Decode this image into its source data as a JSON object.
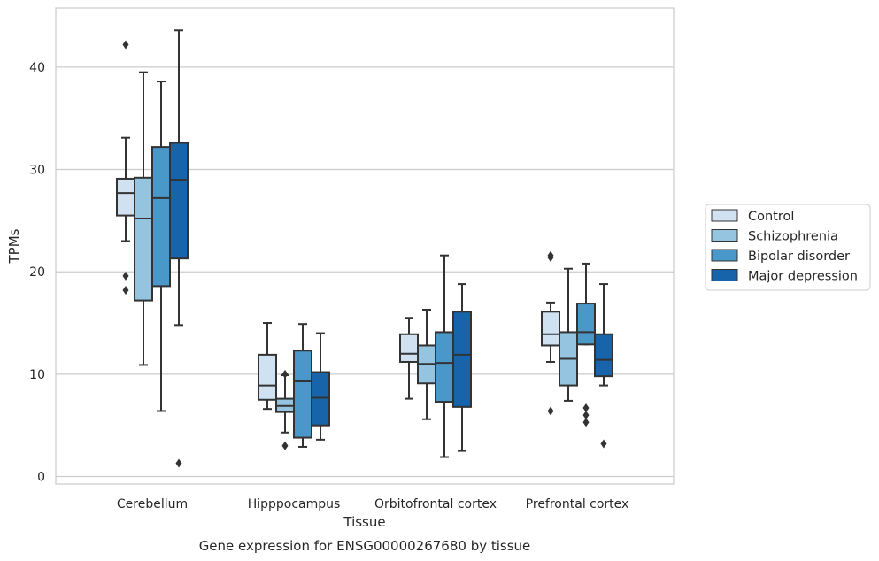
{
  "chart_data": {
    "type": "box",
    "title": "",
    "caption": "Gene expression for ENSG00000267680 by tissue",
    "xlabel": "Tissue",
    "ylabel": "TPMs",
    "ylim": [
      -0.8,
      46
    ],
    "yticks": [
      0,
      10,
      20,
      30,
      40
    ],
    "grid": "horizontal",
    "legend": {
      "placement": "right"
    },
    "categories": [
      "Cerebellum",
      "Hipppocampus",
      "Orbitofrontal cortex",
      "Prefrontal cortex"
    ],
    "series": [
      {
        "name": "Control",
        "color": "#d0e1f2",
        "boxes": [
          {
            "whisker_low": 23.0,
            "q1": 25.5,
            "median": 27.7,
            "q3": 29.1,
            "whisker_high": 33.1,
            "outliers": [
              19.6,
              18.2,
              42.2
            ]
          },
          {
            "whisker_low": 6.6,
            "q1": 7.5,
            "median": 8.9,
            "q3": 11.9,
            "whisker_high": 15.0,
            "outliers": []
          },
          {
            "whisker_low": 7.6,
            "q1": 11.2,
            "median": 12.0,
            "q3": 13.9,
            "whisker_high": 15.5,
            "outliers": []
          },
          {
            "whisker_low": 11.2,
            "q1": 12.8,
            "median": 13.9,
            "q3": 16.1,
            "whisker_high": 17.0,
            "outliers": [
              21.6,
              21.4,
              6.4
            ]
          }
        ]
      },
      {
        "name": "Schizophrenia",
        "color": "#94c4df",
        "boxes": [
          {
            "whisker_low": 10.9,
            "q1": 17.2,
            "median": 25.2,
            "q3": 29.2,
            "whisker_high": 39.5,
            "outliers": []
          },
          {
            "whisker_low": 4.3,
            "q1": 6.3,
            "median": 6.9,
            "q3": 7.6,
            "whisker_high": 9.9,
            "outliers": [
              10.0,
              3.0
            ]
          },
          {
            "whisker_low": 5.6,
            "q1": 9.1,
            "median": 11.0,
            "q3": 12.8,
            "whisker_high": 16.3,
            "outliers": []
          },
          {
            "whisker_low": 7.4,
            "q1": 8.9,
            "median": 11.5,
            "q3": 14.1,
            "whisker_high": 20.3,
            "outliers": []
          }
        ]
      },
      {
        "name": "Bipolar disorder",
        "color": "#4a98c9",
        "boxes": [
          {
            "whisker_low": 6.4,
            "q1": 18.6,
            "median": 27.2,
            "q3": 32.2,
            "whisker_high": 38.6,
            "outliers": []
          },
          {
            "whisker_low": 2.9,
            "q1": 3.8,
            "median": 9.3,
            "q3": 12.3,
            "whisker_high": 14.9,
            "outliers": []
          },
          {
            "whisker_low": 1.9,
            "q1": 7.3,
            "median": 11.1,
            "q3": 14.1,
            "whisker_high": 21.6,
            "outliers": []
          },
          {
            "whisker_low": 12.9,
            "q1": 12.9,
            "median": 14.1,
            "q3": 16.9,
            "whisker_high": 20.8,
            "outliers": [
              6.7,
              6.0,
              5.3
            ]
          }
        ]
      },
      {
        "name": "Major depression",
        "color": "#1764ab",
        "boxes": [
          {
            "whisker_low": 14.8,
            "q1": 21.3,
            "median": 29.0,
            "q3": 32.6,
            "whisker_high": 43.6,
            "outliers": [
              1.3
            ]
          },
          {
            "whisker_low": 3.6,
            "q1": 5.0,
            "median": 7.7,
            "q3": 10.2,
            "whisker_high": 14.0,
            "outliers": []
          },
          {
            "whisker_low": 2.5,
            "q1": 6.8,
            "median": 11.9,
            "q3": 16.1,
            "whisker_high": 18.8,
            "outliers": []
          },
          {
            "whisker_low": 8.9,
            "q1": 9.8,
            "median": 11.4,
            "q3": 13.9,
            "whisker_high": 18.8,
            "outliers": [
              3.2
            ]
          }
        ]
      }
    ]
  }
}
